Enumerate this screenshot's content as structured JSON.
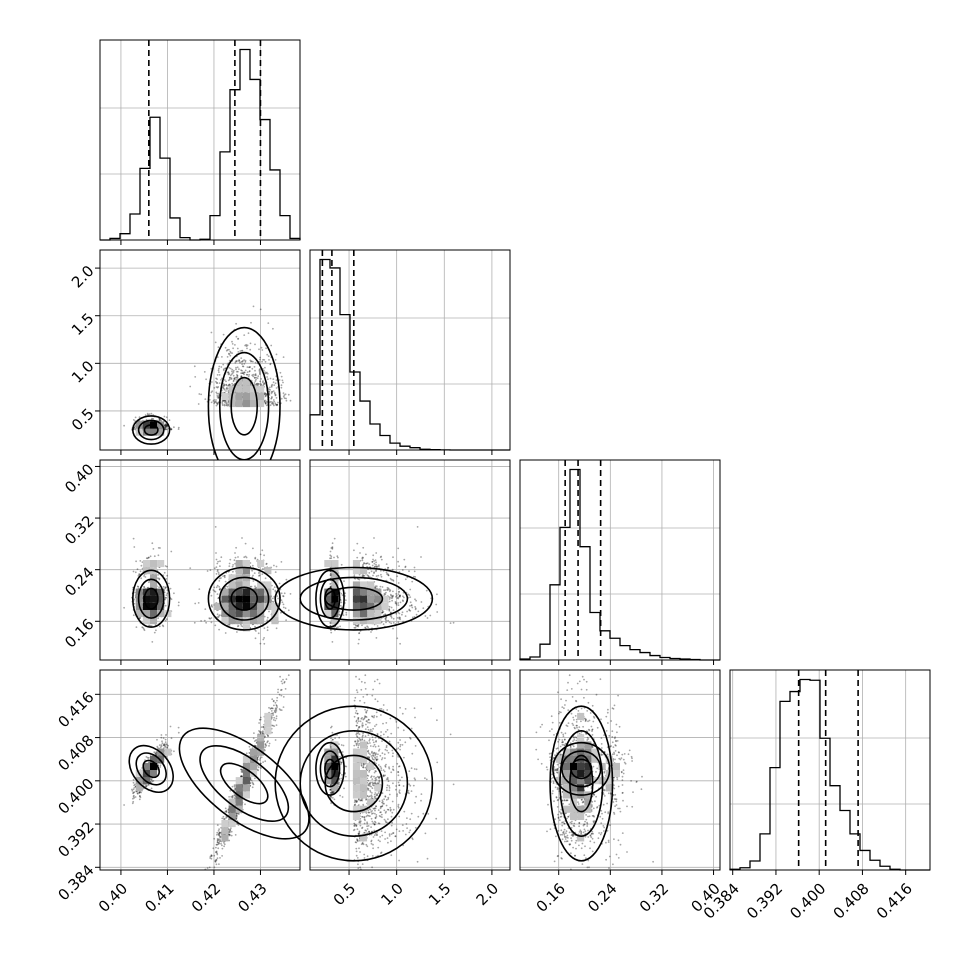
{
  "chart_data": {
    "type": "scatter",
    "kind": "corner-plot",
    "grid": true,
    "parameters": 4,
    "tick_labels": {
      "p0": [
        "0.40",
        "0.41",
        "0.42",
        "0.43"
      ],
      "p1": [
        "0.5",
        "1.0",
        "1.5",
        "2.0"
      ],
      "p2": [
        "0.16",
        "0.24",
        "0.32",
        "0.40"
      ],
      "p3": [
        "0.384",
        "0.392",
        "0.400",
        "0.408",
        "0.416"
      ]
    },
    "ranges": [
      [
        0.3955,
        0.4385
      ],
      [
        0.09,
        2.19
      ],
      [
        0.1,
        0.41
      ],
      [
        0.3835,
        0.4205
      ]
    ],
    "ticks": [
      [
        0.4,
        0.41,
        0.42,
        0.43
      ],
      [
        0.5,
        1.0,
        1.5,
        2.0
      ],
      [
        0.16,
        0.24,
        0.32,
        0.4
      ],
      [
        0.384,
        0.392,
        0.4,
        0.408,
        0.416
      ]
    ],
    "quantiles": [
      [
        0.406,
        0.4245,
        0.43
      ],
      [
        0.22,
        0.32,
        0.55
      ],
      [
        0.17,
        0.19,
        0.225
      ],
      [
        0.3962,
        0.4012,
        0.4072
      ]
    ],
    "histograms": [
      {
        "edges": [
          0.3955,
          0.4385
        ],
        "counts": [
          0,
          0.02,
          0.08,
          0.33,
          0.91,
          1.56,
          1.04,
          0.28,
          0.03,
          0,
          0.01,
          0.31,
          1.12,
          1.91,
          2.42,
          2.04,
          1.53,
          0.89,
          0.31,
          0.02
        ]
      },
      {
        "edges": [
          0.09,
          2.19
        ],
        "counts": [
          0.46,
          2.49,
          2.38,
          1.77,
          1.02,
          0.64,
          0.34,
          0.19,
          0.09,
          0.05,
          0.03,
          0.01,
          0.005,
          0.002,
          0,
          0,
          0,
          0,
          0,
          0
        ]
      },
      {
        "edges": [
          0.1,
          0.41
        ],
        "counts": [
          0.02,
          0.06,
          0.32,
          1.52,
          2.68,
          3.85,
          2.29,
          0.96,
          0.59,
          0.44,
          0.29,
          0.21,
          0.15,
          0.09,
          0.05,
          0.03,
          0.02,
          0.01,
          0,
          0
        ]
      },
      {
        "edges": [
          0.3835,
          0.4205
        ],
        "counts": [
          0.01,
          0.03,
          0.12,
          0.48,
          1.36,
          2.24,
          2.37,
          2.53,
          2.52,
          1.75,
          1.12,
          0.79,
          0.48,
          0.26,
          0.13,
          0.05,
          0.01,
          0,
          0,
          0
        ]
      }
    ],
    "modes": [
      {
        "weight": 0.35,
        "mean": [
          0.4065,
          0.3,
          0.195,
          0.4022
        ],
        "sd": [
          0.0018,
          0.045,
          0.02,
          0.0022
        ]
      },
      {
        "weight": 0.65,
        "mean": [
          0.4265,
          0.55,
          0.195,
          0.3995
        ],
        "sd": [
          0.0035,
          0.25,
          0.022,
          0.0065
        ]
      }
    ]
  }
}
